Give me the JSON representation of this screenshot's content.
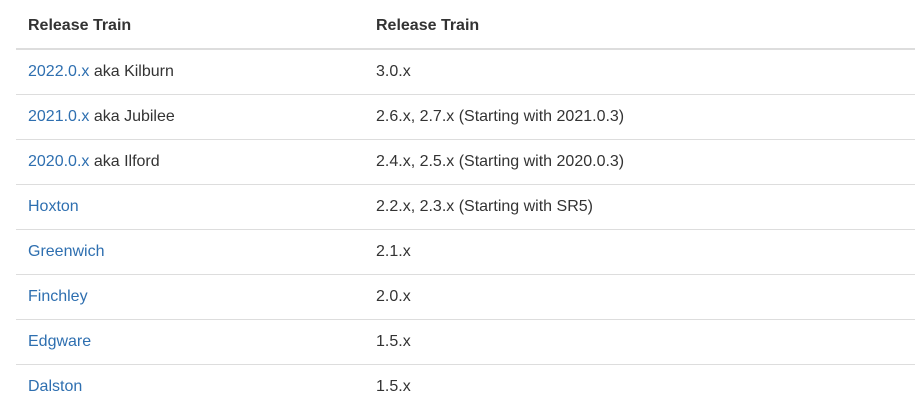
{
  "table": {
    "headers": [
      "Release Train",
      "Release Train"
    ],
    "rows": [
      {
        "link": "2022.0.x",
        "suffix": " aka Kilburn",
        "boot": "3.0.x"
      },
      {
        "link": "2021.0.x",
        "suffix": " aka Jubilee",
        "boot": "2.6.x, 2.7.x (Starting with 2021.0.3)"
      },
      {
        "link": "2020.0.x",
        "suffix": " aka Ilford",
        "boot": "2.4.x, 2.5.x (Starting with 2020.0.3)"
      },
      {
        "link": "Hoxton",
        "suffix": "",
        "boot": "2.2.x, 2.3.x (Starting with SR5)"
      },
      {
        "link": "Greenwich",
        "suffix": "",
        "boot": "2.1.x"
      },
      {
        "link": "Finchley",
        "suffix": "",
        "boot": "2.0.x"
      },
      {
        "link": "Edgware",
        "suffix": "",
        "boot": "1.5.x"
      },
      {
        "link": "Dalston",
        "suffix": "",
        "boot": "1.5.x"
      }
    ]
  },
  "colors": {
    "link": "#2e6fb0",
    "text": "#333333",
    "border": "#dddddd"
  }
}
